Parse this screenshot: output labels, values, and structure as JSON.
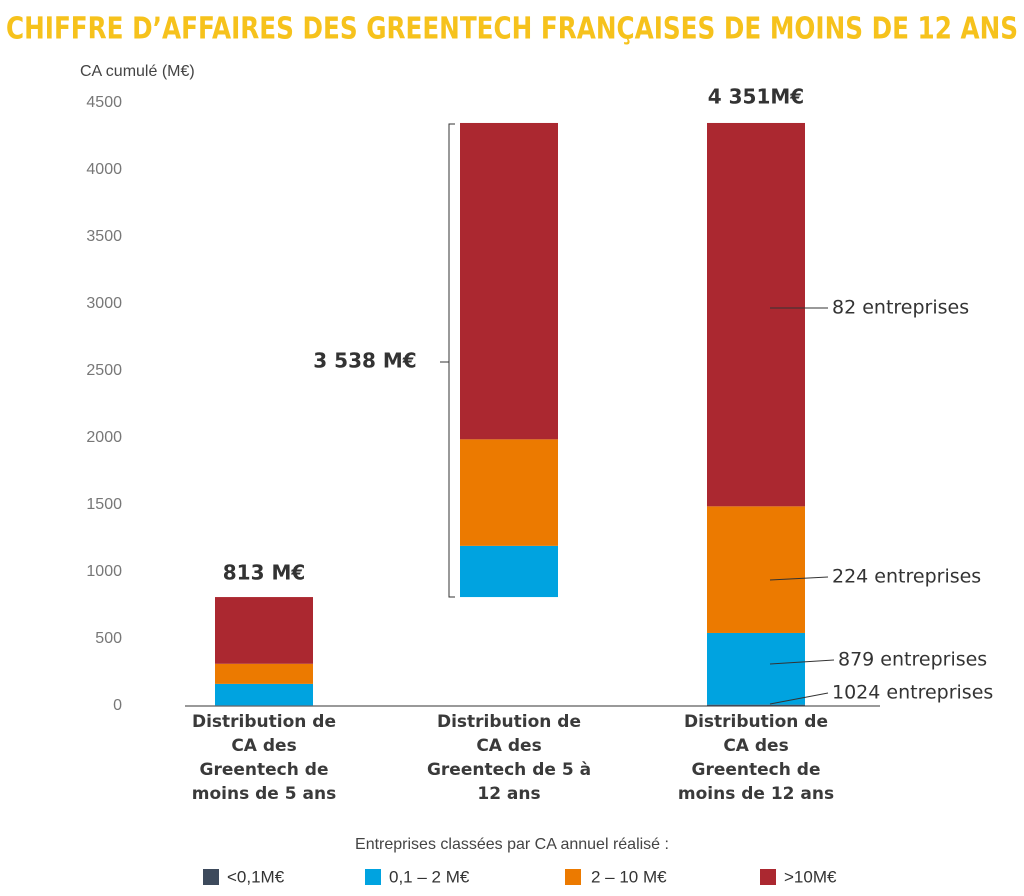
{
  "chart_data": {
    "type": "waterfall",
    "title": "CHIFFRE D’AFFAIRES DES GREENTECH FRANÇAISES DE MOINS DE 12 ANS",
    "y_label": "CA cumulé (M€)",
    "categories": [
      "Distribution de CA des Greentech de moins de 5 ans",
      "Distribution de CA des Greentech de 5 à 12 ans",
      "Distribution de CA des Greentech de moins de 12 ans"
    ],
    "series": [
      {
        "name": "<0,1M€",
        "color": "#3d4a5c",
        "values": [
          5,
          0,
          10
        ]
      },
      {
        "name": "0,1 – 2 M€",
        "color": "#00a3e0",
        "values": [
          160,
          382,
          535
        ]
      },
      {
        "name": "2 – 10 M€",
        "color": "#ec7a00",
        "values": [
          150,
          795,
          945
        ]
      },
      {
        "name": ">10M€",
        "color": "#ab2830",
        "values": [
          498,
          2361,
          2861
        ]
      }
    ],
    "ylim": [
      0,
      4500
    ],
    "yticks": [
      0,
      500,
      1000,
      1500,
      2000,
      2500,
      3000,
      3500,
      4000,
      4500
    ],
    "annotations": [
      "813 M€",
      "3 538 M€",
      "4 351M€",
      "82 entreprises",
      "224 entreprises",
      "879 entreprises",
      "1024 entreprises"
    ],
    "legend_title": "Entreprises classées par CA annuel réalisé :"
  }
}
